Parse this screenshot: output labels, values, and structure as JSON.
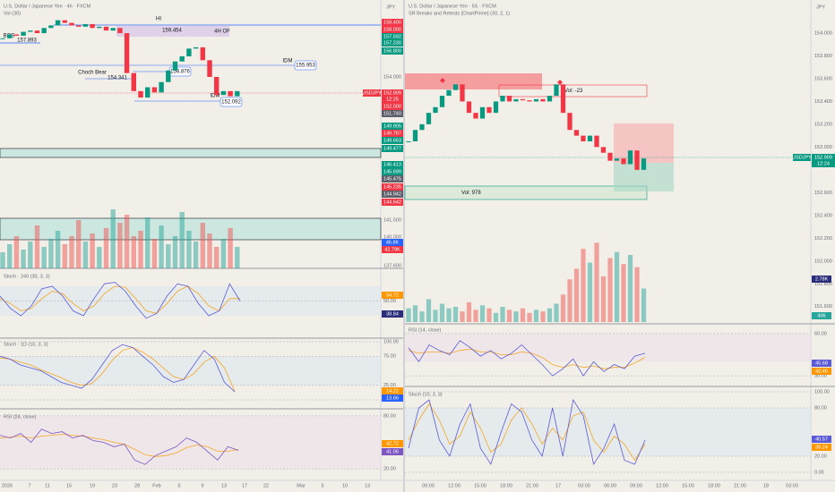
{
  "left": {
    "title": "U.S. Dollar / Japanese Yen · 4h · FXCM",
    "subtitle": "Vol (30)",
    "currency": "JPY",
    "annotations": [
      "HI",
      "159.454",
      "4H OF",
      "BOS",
      "157.893",
      "IDM",
      "155.953",
      "Choch Bear",
      "154.876",
      "154.341",
      "IDM",
      "152.092"
    ],
    "price": {
      "ylim": [
        151.5,
        159
      ],
      "yticks": [
        {
          "value": 156,
          "label": "156.000"
        },
        {
          "value": 154,
          "label": "154.000"
        }
      ],
      "closes": [
        157.0,
        157.3,
        157.2,
        157.5,
        157.6,
        157.4,
        157.8,
        158.0,
        158.4,
        158.2,
        158.0,
        157.9,
        158.1,
        157.8,
        157.9,
        157.6,
        157.8,
        157.4,
        154.3,
        152.9,
        152.4,
        153.2,
        152.8,
        153.6,
        154.5,
        155.2,
        155.6,
        156.2,
        156.3,
        155.3,
        154.0,
        152.6,
        152.9,
        152.5,
        152.9
      ],
      "up_color": "#089981",
      "down_color": "#f23645"
    },
    "symbol_tag": {
      "symbol": "USDJPY",
      "price": "152.909",
      "countdown": "12:25",
      "color": "#f23645"
    },
    "level_tags": [
      {
        "label": "158.400",
        "color": "#f23645"
      },
      {
        "label": "158.000",
        "color": "#f23645"
      },
      {
        "label": "157.592",
        "color": "#089981"
      },
      {
        "label": "157.230",
        "color": "#089981"
      },
      {
        "label": "156.800",
        "color": "#089981"
      },
      {
        "label": "152.000",
        "color": "#f23645"
      },
      {
        "label": "151.740",
        "color": "#5d606b"
      },
      {
        "label": "149.905",
        "color": "#089981"
      },
      {
        "label": "149.787",
        "color": "#f23645"
      },
      {
        "label": "149.663",
        "color": "#089981"
      },
      {
        "label": "149.477",
        "color": "#089981"
      },
      {
        "label": "146.413",
        "color": "#089981"
      },
      {
        "label": "145.699",
        "color": "#089981"
      },
      {
        "label": "145.475",
        "color": "#5d606b"
      },
      {
        "label": "145.235",
        "color": "#f23645"
      },
      {
        "label": "144.942",
        "color": "#5d606b"
      },
      {
        "label": "144.642",
        "color": "#f23645"
      }
    ],
    "extra_axis_labels": [
      "141.500",
      "140.000",
      "137.600"
    ],
    "volume": {
      "ylim": [
        0,
        120
      ],
      "values": [
        30,
        45,
        60,
        35,
        50,
        80,
        40,
        55,
        70,
        45,
        60,
        90,
        50,
        65,
        40,
        75,
        110,
        85,
        100,
        60,
        70,
        95,
        55,
        80,
        45,
        60,
        105,
        70,
        50,
        85,
        65,
        40,
        55,
        75,
        40
      ],
      "tags": [
        {
          "label": "46.8K",
          "color": "#2962ff"
        },
        {
          "label": "42.79K",
          "color": "#f23645"
        }
      ]
    },
    "stoch_240": {
      "title": "Stoch · 240 (30, 3, 3)",
      "ylim": [
        0,
        100
      ],
      "yticks": [
        {
          "value": 50,
          "label": "50.00"
        }
      ],
      "k": [
        60,
        35,
        20,
        40,
        75,
        80,
        60,
        30,
        20,
        55,
        85,
        88,
        70,
        40,
        15,
        25,
        60,
        85,
        80,
        45,
        20,
        30,
        85,
        50
      ],
      "d": [
        55,
        45,
        30,
        35,
        55,
        70,
        65,
        45,
        30,
        40,
        65,
        80,
        78,
        55,
        30,
        25,
        45,
        70,
        80,
        65,
        40,
        30,
        55,
        55
      ],
      "tags": [
        {
          "label": "54.72",
          "color": "#ff9800"
        },
        {
          "label": "38.84",
          "color": "#2a2e7a"
        }
      ]
    },
    "stoch_1d": {
      "title": "Stoch · 1D (10, 3, 3)",
      "ylim": [
        0,
        100
      ],
      "yticks": [
        {
          "value": 100,
          "label": "100.00"
        },
        {
          "value": 75,
          "label": "75.00"
        },
        {
          "value": 25,
          "label": "25.00"
        },
        {
          "value": 0,
          "label": "0.00"
        }
      ],
      "k": [
        75,
        70,
        60,
        55,
        50,
        40,
        30,
        25,
        20,
        35,
        60,
        85,
        95,
        90,
        75,
        60,
        40,
        30,
        35,
        60,
        85,
        70,
        30,
        14
      ],
      "d": [
        72,
        70,
        65,
        60,
        52,
        45,
        38,
        30,
        25,
        28,
        45,
        68,
        85,
        90,
        82,
        70,
        55,
        40,
        35,
        45,
        65,
        75,
        55,
        15
      ],
      "tags": [
        {
          "label": "14.22",
          "color": "#ff9800"
        },
        {
          "label": "13.66",
          "color": "#2962ff"
        }
      ]
    },
    "rsi": {
      "title": "RSI (24, close)",
      "ylim": [
        10,
        90
      ],
      "yticks": [
        {
          "value": 80,
          "label": "80.00"
        },
        {
          "value": 20,
          "label": "20.00"
        }
      ],
      "values": [
        58,
        55,
        60,
        50,
        65,
        60,
        62,
        55,
        58,
        52,
        50,
        45,
        48,
        30,
        25,
        35,
        40,
        45,
        55,
        50,
        40,
        30,
        45,
        41
      ],
      "ma": [
        55,
        56,
        57,
        55,
        57,
        58,
        59,
        58,
        57,
        55,
        53,
        50,
        48,
        42,
        36,
        34,
        35,
        38,
        44,
        47,
        45,
        40,
        40,
        42
      ],
      "tags": [
        {
          "label": "42.72",
          "color": "#ff9800"
        },
        {
          "label": "41.06",
          "color": "#7e57c2"
        }
      ]
    },
    "time_labels": [
      "2026",
      "7",
      "11",
      "15",
      "19",
      "23",
      "28",
      "Feb",
      "5",
      "9",
      "13",
      "17",
      "22",
      "Mar",
      "5",
      "10",
      "13"
    ]
  },
  "right": {
    "title": "U.S. Dollar / Japanese Yen · 5S · FXCM",
    "subtitle": "SR Breaks and Retests [ChartPrime] (30, 2, 1)",
    "currency": "JPY",
    "annotations": [
      "Vol: -23",
      "Vol: 978"
    ],
    "price": {
      "ylim": [
        151.465,
        154.133
      ],
      "yticks": [
        {
          "value": 154,
          "label": "154.000"
        },
        {
          "value": 153.8,
          "label": "153.800"
        },
        {
          "value": 153.6,
          "label": "153.600"
        },
        {
          "value": 153.4,
          "label": "153.400"
        },
        {
          "value": 153.2,
          "label": "153.200"
        },
        {
          "value": 153,
          "label": "153.000"
        },
        {
          "value": 152.6,
          "label": "152.600"
        },
        {
          "value": 152.4,
          "label": "152.400"
        },
        {
          "value": 152.2,
          "label": "152.200"
        },
        {
          "value": 152,
          "label": "152.000"
        },
        {
          "value": 151.8,
          "label": "151.800"
        },
        {
          "value": 151.6,
          "label": "151.600"
        }
      ],
      "closes": [
        153.05,
        153.15,
        153.2,
        153.3,
        153.35,
        153.45,
        153.5,
        153.55,
        153.4,
        153.3,
        153.25,
        153.35,
        153.3,
        153.4,
        153.45,
        153.4,
        153.42,
        153.41,
        153.4,
        153.42,
        153.4,
        153.45,
        153.55,
        153.3,
        153.15,
        153.1,
        153.05,
        153.1,
        153.0,
        152.95,
        152.88,
        152.9,
        152.85,
        152.97,
        152.8,
        152.9
      ],
      "up_color": "#089981",
      "down_color": "#f23645"
    },
    "symbol_tag": {
      "symbol": "USDJPY",
      "price": "152.909",
      "countdown": "12:24",
      "color": "#089981"
    },
    "volume": {
      "ylim": [
        0,
        5400
      ],
      "values": [
        900,
        1100,
        700,
        1500,
        800,
        1200,
        900,
        1000,
        700,
        1300,
        800,
        1100,
        900,
        600,
        1000,
        800,
        700,
        900,
        600,
        800,
        700,
        900,
        1200,
        1800,
        2800,
        3500,
        4800,
        3900,
        5200,
        3000,
        4200,
        4600,
        3800,
        4400,
        3600,
        2200
      ],
      "tags": [
        {
          "label": "2.78K",
          "color": "#2a2e7a"
        },
        {
          "label": "406",
          "color": "#26a69a"
        }
      ]
    },
    "rsi": {
      "title": "RSI (14, close)",
      "ylim": [
        25,
        65
      ],
      "yticks": [
        {
          "value": 60,
          "label": "60.00"
        },
        {
          "value": 30,
          "label": "30.00"
        }
      ],
      "values": [
        50,
        40,
        52,
        48,
        45,
        55,
        50,
        44,
        48,
        42,
        46,
        52,
        45,
        38,
        30,
        35,
        42,
        30,
        40,
        33,
        38,
        35,
        44,
        46
      ],
      "ma": [
        48,
        46,
        47,
        47,
        46,
        48,
        49,
        47,
        47,
        45,
        45,
        47,
        46,
        43,
        38,
        36,
        38,
        36,
        37,
        35,
        36,
        36,
        39,
        43
      ],
      "tags": [
        {
          "label": "45.68",
          "color": "#5b5bd6"
        },
        {
          "label": "43.45",
          "color": "#ff9800"
        }
      ]
    },
    "stoch": {
      "title": "Stoch (10, 3, 3)",
      "ylim": [
        0,
        100
      ],
      "yticks": [
        {
          "value": 100,
          "label": "100.00"
        },
        {
          "value": 80,
          "label": "80.00"
        },
        {
          "value": 20,
          "label": "20.00"
        },
        {
          "value": 0,
          "label": "0.00"
        }
      ],
      "k": [
        30,
        80,
        90,
        40,
        20,
        60,
        85,
        30,
        10,
        50,
        85,
        75,
        40,
        20,
        80,
        20,
        90,
        70,
        10,
        30,
        60,
        15,
        10,
        40
      ],
      "d": [
        40,
        65,
        85,
        65,
        35,
        45,
        75,
        55,
        25,
        35,
        65,
        80,
        60,
        35,
        55,
        40,
        70,
        75,
        40,
        25,
        45,
        35,
        15,
        35
      ],
      "tags": [
        {
          "label": "40.57",
          "color": "#5b5bd6"
        },
        {
          "label": "39.24",
          "color": "#ff9800"
        }
      ]
    },
    "time_labels": [
      "09:00",
      "12:00",
      "15:00",
      "18:00",
      "21:00",
      "17",
      "03:00",
      "06:00",
      "09:00",
      "12:00",
      "15:00",
      "18:00",
      "21:00",
      "18",
      "03:00"
    ]
  }
}
